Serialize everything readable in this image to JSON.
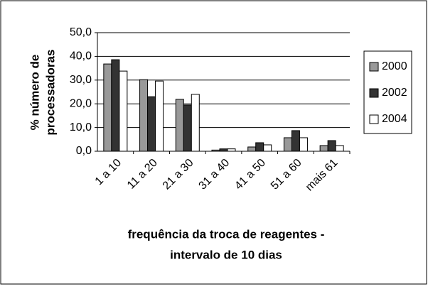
{
  "chart_data": {
    "type": "bar",
    "ylabel": [
      "% número de",
      "processadoras"
    ],
    "xlabel": [
      "frequência da troca de reagentes -",
      "intervalo de 10 dias"
    ],
    "categories": [
      "1 a 10",
      "11 a 20",
      "21 a 30",
      "31 a 40",
      "41 a 50",
      "51 a 60",
      "mais 61"
    ],
    "series": [
      {
        "name": "2000",
        "color": "#999999",
        "values": [
          36.8,
          30.2,
          21.9,
          0.5,
          1.8,
          5.7,
          2.4
        ]
      },
      {
        "name": "2002",
        "color": "#333333",
        "values": [
          38.6,
          23.0,
          19.5,
          1.0,
          3.6,
          8.7,
          4.5
        ]
      },
      {
        "name": "2004",
        "color": "#ffffff",
        "values": [
          33.8,
          29.6,
          24.0,
          1.0,
          2.7,
          5.7,
          2.4
        ]
      }
    ],
    "ylim": [
      0,
      50
    ],
    "yticks": [
      {
        "value": 0,
        "label": "0,0"
      },
      {
        "value": 10,
        "label": "10,0"
      },
      {
        "value": 20,
        "label": "20,0"
      },
      {
        "value": 30,
        "label": "30,0"
      },
      {
        "value": 40,
        "label": "40,0"
      },
      {
        "value": 50,
        "label": "50,0"
      }
    ],
    "grid": true,
    "legend": "right"
  }
}
